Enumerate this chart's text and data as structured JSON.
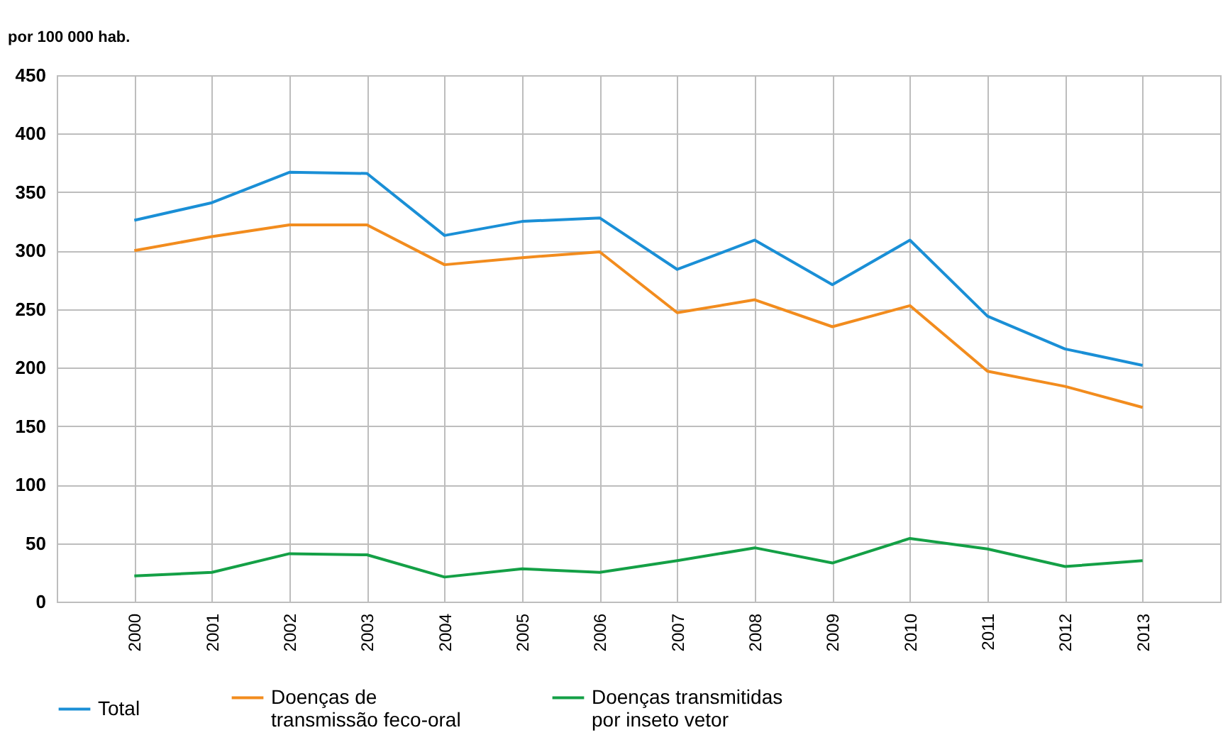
{
  "chart_data": {
    "type": "line",
    "ylabel": "por 100 000 hab.",
    "categories": [
      "2000",
      "2001",
      "2002",
      "2003",
      "2004",
      "2005",
      "2006",
      "2007",
      "2008",
      "2009",
      "2010",
      "2011",
      "2012",
      "2013"
    ],
    "series": [
      {
        "name": "Total",
        "color": "#1a8fd6",
        "values": [
          326,
          341,
          367,
          366,
          313,
          325,
          328,
          284,
          309,
          271,
          309,
          244,
          216,
          202
        ]
      },
      {
        "name": "Doenças de transmissão feco-oral",
        "color": "#f28c1e",
        "values": [
          300,
          312,
          322,
          322,
          288,
          294,
          299,
          247,
          258,
          235,
          253,
          197,
          184,
          166
        ]
      },
      {
        "name": "Doenças transmitidas por inseto vetor",
        "color": "#14a046",
        "values": [
          22,
          25,
          41,
          40,
          21,
          28,
          25,
          35,
          46,
          33,
          54,
          45,
          30,
          35
        ]
      }
    ],
    "ylim": [
      0,
      450
    ],
    "yticks": [
      0,
      50,
      100,
      150,
      200,
      250,
      300,
      350,
      400,
      450
    ],
    "grid": true,
    "legend": "bottom",
    "marker": "none",
    "line_style": "solid"
  }
}
